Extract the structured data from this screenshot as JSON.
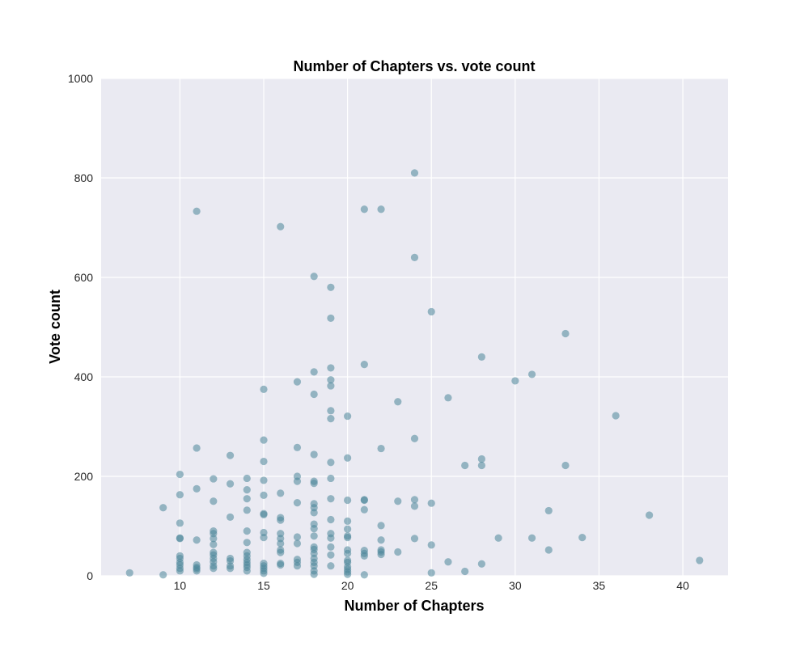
{
  "chart_data": {
    "type": "scatter",
    "title": "Number of Chapters vs. vote count",
    "xlabel": "Number of Chapters",
    "ylabel": "Vote count",
    "xlim": [
      5.3,
      42.7
    ],
    "ylim": [
      0,
      1000
    ],
    "xticks": [
      10,
      15,
      20,
      25,
      30,
      35,
      40
    ],
    "yticks": [
      0,
      200,
      400,
      600,
      800,
      1000
    ],
    "grid": true,
    "background_color": "#eaeaf2",
    "grid_color": "#ffffff",
    "point_color": "#4a8599",
    "point_alpha": 0.55,
    "series": [
      {
        "points": [
          [
            7,
            6
          ],
          [
            9,
            2
          ],
          [
            9,
            137
          ],
          [
            10,
            10
          ],
          [
            10,
            15
          ],
          [
            10,
            22
          ],
          [
            10,
            27
          ],
          [
            10,
            35
          ],
          [
            10,
            40
          ],
          [
            10,
            75
          ],
          [
            10,
            76
          ],
          [
            10,
            106
          ],
          [
            10,
            163
          ],
          [
            10,
            204
          ],
          [
            11,
            10
          ],
          [
            11,
            14
          ],
          [
            11,
            17
          ],
          [
            11,
            22
          ],
          [
            11,
            72
          ],
          [
            11,
            175
          ],
          [
            11,
            257
          ],
          [
            11,
            733
          ],
          [
            12,
            15
          ],
          [
            12,
            20
          ],
          [
            12,
            28
          ],
          [
            12,
            35
          ],
          [
            12,
            42
          ],
          [
            12,
            47
          ],
          [
            12,
            63
          ],
          [
            12,
            75
          ],
          [
            12,
            85
          ],
          [
            12,
            90
          ],
          [
            12,
            150
          ],
          [
            12,
            195
          ],
          [
            13,
            15
          ],
          [
            13,
            20
          ],
          [
            13,
            30
          ],
          [
            13,
            35
          ],
          [
            13,
            118
          ],
          [
            13,
            185
          ],
          [
            13,
            242
          ],
          [
            14,
            10
          ],
          [
            14,
            17
          ],
          [
            14,
            22
          ],
          [
            14,
            27
          ],
          [
            14,
            33
          ],
          [
            14,
            40
          ],
          [
            14,
            47
          ],
          [
            14,
            67
          ],
          [
            14,
            90
          ],
          [
            14,
            132
          ],
          [
            14,
            155
          ],
          [
            14,
            173
          ],
          [
            14,
            196
          ],
          [
            15,
            5
          ],
          [
            15,
            10
          ],
          [
            15,
            15
          ],
          [
            15,
            20
          ],
          [
            15,
            25
          ],
          [
            15,
            77
          ],
          [
            15,
            87
          ],
          [
            15,
            123
          ],
          [
            15,
            125
          ],
          [
            15,
            162
          ],
          [
            15,
            192
          ],
          [
            15,
            230
          ],
          [
            15,
            273
          ],
          [
            15,
            375
          ],
          [
            16,
            22
          ],
          [
            16,
            25
          ],
          [
            16,
            47
          ],
          [
            16,
            52
          ],
          [
            16,
            65
          ],
          [
            16,
            75
          ],
          [
            16,
            85
          ],
          [
            16,
            112
          ],
          [
            16,
            117
          ],
          [
            16,
            166
          ],
          [
            16,
            702
          ],
          [
            17,
            20
          ],
          [
            17,
            27
          ],
          [
            17,
            33
          ],
          [
            17,
            65
          ],
          [
            17,
            78
          ],
          [
            17,
            147
          ],
          [
            17,
            190
          ],
          [
            17,
            200
          ],
          [
            17,
            258
          ],
          [
            17,
            390
          ],
          [
            18,
            3
          ],
          [
            18,
            10
          ],
          [
            18,
            20
          ],
          [
            18,
            27
          ],
          [
            18,
            35
          ],
          [
            18,
            45
          ],
          [
            18,
            53
          ],
          [
            18,
            58
          ],
          [
            18,
            80
          ],
          [
            18,
            95
          ],
          [
            18,
            104
          ],
          [
            18,
            127
          ],
          [
            18,
            137
          ],
          [
            18,
            145
          ],
          [
            18,
            186
          ],
          [
            18,
            190
          ],
          [
            18,
            244
          ],
          [
            18,
            365
          ],
          [
            18,
            410
          ],
          [
            18,
            602
          ],
          [
            19,
            20
          ],
          [
            19,
            42
          ],
          [
            19,
            58
          ],
          [
            19,
            76
          ],
          [
            19,
            85
          ],
          [
            19,
            113
          ],
          [
            19,
            155
          ],
          [
            19,
            196
          ],
          [
            19,
            228
          ],
          [
            19,
            316
          ],
          [
            19,
            332
          ],
          [
            19,
            382
          ],
          [
            19,
            394
          ],
          [
            19,
            418
          ],
          [
            19,
            518
          ],
          [
            19,
            580
          ],
          [
            20,
            3
          ],
          [
            20,
            8
          ],
          [
            20,
            13
          ],
          [
            20,
            18
          ],
          [
            20,
            27
          ],
          [
            20,
            31
          ],
          [
            20,
            45
          ],
          [
            20,
            52
          ],
          [
            20,
            77
          ],
          [
            20,
            80
          ],
          [
            20,
            94
          ],
          [
            20,
            110
          ],
          [
            20,
            152
          ],
          [
            20,
            237
          ],
          [
            20,
            321
          ],
          [
            21,
            2
          ],
          [
            21,
            40
          ],
          [
            21,
            45
          ],
          [
            21,
            51
          ],
          [
            21,
            133
          ],
          [
            21,
            152
          ],
          [
            21,
            153
          ],
          [
            21,
            425
          ],
          [
            21,
            737
          ],
          [
            22,
            43
          ],
          [
            22,
            48
          ],
          [
            22,
            52
          ],
          [
            22,
            72
          ],
          [
            22,
            101
          ],
          [
            22,
            256
          ],
          [
            22,
            737
          ],
          [
            23,
            48
          ],
          [
            23,
            150
          ],
          [
            23,
            350
          ],
          [
            24,
            75
          ],
          [
            24,
            140
          ],
          [
            24,
            153
          ],
          [
            24,
            276
          ],
          [
            24,
            640
          ],
          [
            24,
            810
          ],
          [
            25,
            6
          ],
          [
            25,
            62
          ],
          [
            25,
            146
          ],
          [
            25,
            531
          ],
          [
            26,
            28
          ],
          [
            26,
            358
          ],
          [
            27,
            9
          ],
          [
            27,
            222
          ],
          [
            28,
            24
          ],
          [
            28,
            222
          ],
          [
            28,
            235
          ],
          [
            28,
            440
          ],
          [
            29,
            76
          ],
          [
            30,
            392
          ],
          [
            31,
            76
          ],
          [
            31,
            405
          ],
          [
            32,
            52
          ],
          [
            32,
            131
          ],
          [
            33,
            222
          ],
          [
            33,
            487
          ],
          [
            34,
            77
          ],
          [
            36,
            322
          ],
          [
            38,
            122
          ],
          [
            41,
            31
          ]
        ]
      }
    ]
  }
}
